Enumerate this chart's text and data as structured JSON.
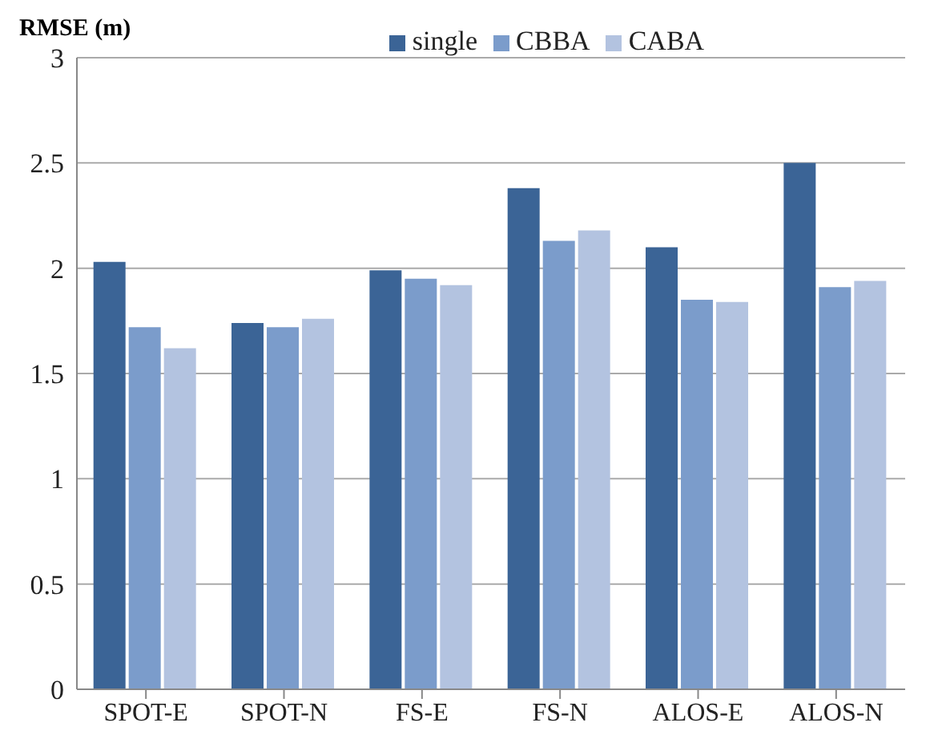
{
  "chart_data": {
    "type": "bar",
    "ylabel": "RMSE (m)",
    "categories": [
      "SPOT-E",
      "SPOT-N",
      "FS-E",
      "FS-N",
      "ALOS-E",
      "ALOS-N"
    ],
    "series": [
      {
        "name": "single",
        "color": "#3b6496",
        "values": [
          2.03,
          1.74,
          1.99,
          2.38,
          2.1,
          2.5
        ]
      },
      {
        "name": "CBBA",
        "color": "#7b9ccb",
        "values": [
          1.72,
          1.72,
          1.95,
          2.13,
          1.85,
          1.91
        ]
      },
      {
        "name": "CABA",
        "color": "#b3c3e0",
        "values": [
          1.62,
          1.76,
          1.92,
          2.18,
          1.84,
          1.94
        ]
      }
    ],
    "ylim": [
      0,
      3
    ],
    "yticks": [
      0,
      0.5,
      1,
      1.5,
      2,
      2.5,
      3
    ],
    "grid": "y",
    "legend": "top"
  }
}
